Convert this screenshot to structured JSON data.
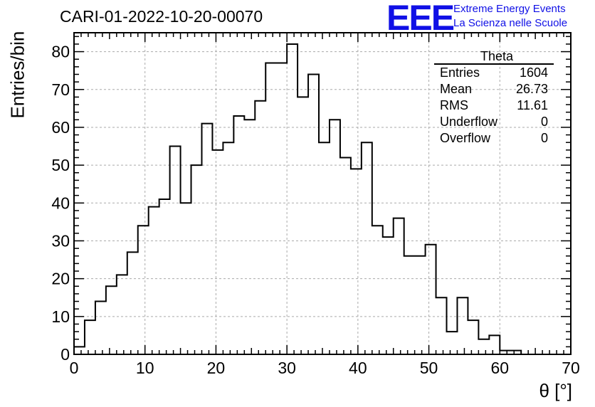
{
  "title": "CARI-01-2022-10-20-00070",
  "logo": {
    "mark": "EEE",
    "line1": "Extreme Energy Events",
    "line2": "La Scienza nelle Scuole",
    "color": "#1010e6"
  },
  "stats": {
    "name": "Theta",
    "rows": [
      {
        "label": "Entries",
        "value": "1604"
      },
      {
        "label": "Mean",
        "value": "26.73"
      },
      {
        "label": "RMS",
        "value": "11.61"
      },
      {
        "label": "Underflow",
        "value": "0"
      },
      {
        "label": "Overflow",
        "value": "0"
      }
    ]
  },
  "chart_data": {
    "type": "histogram",
    "xlabel": "θ [°]",
    "ylabel": "Entries/bin",
    "xlim": [
      0,
      70
    ],
    "ylim": [
      0,
      85
    ],
    "grid": true,
    "x_ticks": [
      0,
      10,
      20,
      30,
      40,
      50,
      60,
      70
    ],
    "y_ticks": [
      0,
      10,
      20,
      30,
      40,
      50,
      60,
      70,
      80
    ],
    "bin_width": 1.5,
    "bin_start": 0,
    "values": [
      2,
      9,
      14,
      18,
      21,
      27,
      34,
      39,
      41,
      55,
      40,
      50,
      61,
      54,
      56,
      63,
      62,
      67,
      77,
      77,
      82,
      68,
      74,
      56,
      62,
      52,
      49,
      56,
      34,
      31,
      36,
      26,
      26,
      29,
      15,
      6,
      15,
      9,
      4,
      5,
      1,
      1,
      0,
      0,
      0,
      0
    ]
  }
}
